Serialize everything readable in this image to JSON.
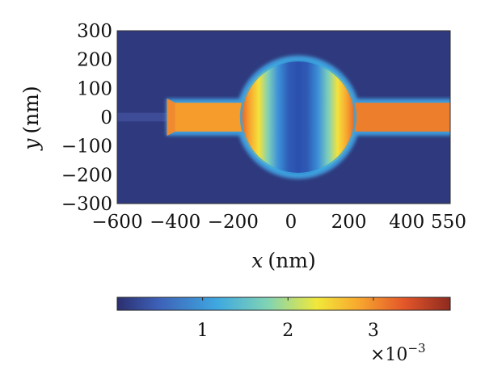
{
  "chart_data": {
    "type": "heatmap",
    "title": "",
    "xlabel": {
      "var": "x",
      "unit": "(nm)"
    },
    "ylabel": {
      "var": "y",
      "unit": "(nm)"
    },
    "xlim": [
      -600,
      550
    ],
    "ylim": [
      -300,
      300
    ],
    "xticks": [
      "-600",
      "-400",
      "-200",
      "0",
      "200",
      "400",
      "550"
    ],
    "yticks": [
      "300",
      "200",
      "100",
      "0",
      "-100",
      "-200",
      "-300"
    ],
    "structure": {
      "disk": {
        "cx": 25,
        "cy": 0,
        "r": 200
      },
      "left_arm": {
        "x0": -420,
        "x1": -120,
        "y0": -50,
        "y1": 50
      },
      "right_arm": {
        "x0": 150,
        "x1": 550,
        "y0": -50,
        "y1": 50
      },
      "left_arm_value": 2.9,
      "right_arm_value": 3.1,
      "background_value": 0.1
    },
    "colorbar": {
      "colormap": "jet",
      "range": [
        0,
        3.9
      ],
      "ticks": [
        "1",
        "2",
        "3"
      ],
      "exponent_label": "×10",
      "exponent": "−3"
    }
  }
}
